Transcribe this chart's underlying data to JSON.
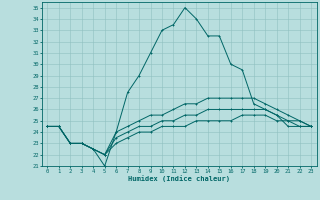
{
  "title": "",
  "xlabel": "Humidex (Indice chaleur)",
  "xlim": [
    -0.5,
    23.5
  ],
  "ylim": [
    21,
    35.5
  ],
  "yticks": [
    21,
    22,
    23,
    24,
    25,
    26,
    27,
    28,
    29,
    30,
    31,
    32,
    33,
    34,
    35
  ],
  "xticks": [
    0,
    1,
    2,
    3,
    4,
    5,
    6,
    7,
    8,
    9,
    10,
    11,
    12,
    13,
    14,
    15,
    16,
    17,
    18,
    19,
    20,
    21,
    22,
    23
  ],
  "bg_color": "#b8dede",
  "line_color": "#006666",
  "grid_color": "#90c0c0",
  "lines": [
    {
      "x": [
        0,
        1,
        2,
        3,
        4,
        5,
        6,
        7,
        8,
        9,
        10,
        11,
        12,
        13,
        14,
        15,
        16,
        17,
        18,
        19,
        20,
        21,
        22,
        23
      ],
      "y": [
        24.5,
        24.5,
        23,
        23,
        22.5,
        21,
        24,
        27.5,
        29,
        31,
        33,
        33.5,
        35,
        34,
        32.5,
        32.5,
        30,
        29.5,
        26.5,
        26,
        25.5,
        24.5,
        24.5,
        24.5
      ]
    },
    {
      "x": [
        0,
        1,
        2,
        3,
        4,
        5,
        6,
        7,
        8,
        9,
        10,
        11,
        12,
        13,
        14,
        15,
        16,
        17,
        18,
        19,
        20,
        21,
        22,
        23
      ],
      "y": [
        24.5,
        24.5,
        23,
        23,
        22.5,
        22,
        24,
        24.5,
        25,
        25.5,
        25.5,
        26,
        26.5,
        26.5,
        27,
        27,
        27,
        27,
        27,
        26.5,
        26,
        25.5,
        25,
        24.5
      ]
    },
    {
      "x": [
        0,
        1,
        2,
        3,
        4,
        5,
        6,
        7,
        8,
        9,
        10,
        11,
        12,
        13,
        14,
        15,
        16,
        17,
        18,
        19,
        20,
        21,
        22,
        23
      ],
      "y": [
        24.5,
        24.5,
        23,
        23,
        22.5,
        22,
        23.5,
        24,
        24.5,
        24.5,
        25,
        25,
        25.5,
        25.5,
        26,
        26,
        26,
        26,
        26,
        26,
        25.5,
        25,
        25,
        24.5
      ]
    },
    {
      "x": [
        0,
        1,
        2,
        3,
        4,
        5,
        6,
        7,
        8,
        9,
        10,
        11,
        12,
        13,
        14,
        15,
        16,
        17,
        18,
        19,
        20,
        21,
        22,
        23
      ],
      "y": [
        24.5,
        24.5,
        23,
        23,
        22.5,
        22,
        23,
        23.5,
        24,
        24,
        24.5,
        24.5,
        24.5,
        25,
        25,
        25,
        25,
        25.5,
        25.5,
        25.5,
        25,
        25,
        24.5,
        24.5
      ]
    }
  ]
}
